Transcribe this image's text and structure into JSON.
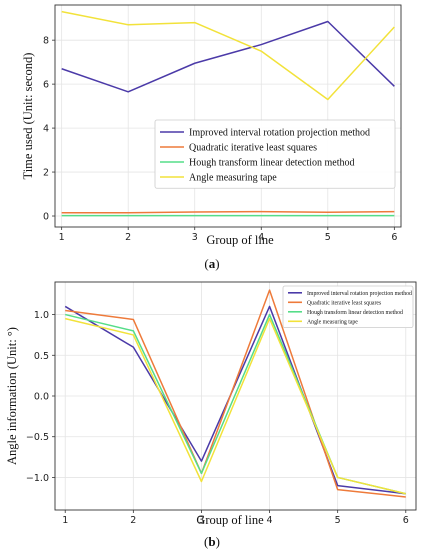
{
  "chart_data": [
    {
      "type": "line",
      "caption": "(a)",
      "x": [
        1,
        2,
        3,
        4,
        5,
        6
      ],
      "xlabel": "Group of line",
      "ylabel": "Time used (Unit: second)",
      "xlim": [
        0.9,
        6.1
      ],
      "ylim": [
        -0.5,
        9.6
      ],
      "xticks": [
        1,
        2,
        3,
        4,
        5,
        6
      ],
      "yticks": [
        0,
        2,
        4,
        6,
        8
      ],
      "grid": true,
      "legend": "center-right",
      "series": [
        {
          "name": "Improved interval rotation projection method",
          "color": "#4b3aa8",
          "values": [
            6.7,
            5.65,
            6.95,
            7.8,
            8.85,
            5.9
          ]
        },
        {
          "name": "Quadratic iterative least squares",
          "color": "#ee7a3a",
          "values": [
            0.15,
            0.15,
            0.18,
            0.2,
            0.17,
            0.2
          ]
        },
        {
          "name": "Hough transform linear detection method",
          "color": "#55dd88",
          "values": [
            0.02,
            0.02,
            0.02,
            0.02,
            0.02,
            0.02
          ]
        },
        {
          "name": "Angle measuring tape",
          "color": "#f2e23a",
          "values": [
            9.3,
            8.7,
            8.8,
            7.5,
            5.3,
            8.6
          ]
        }
      ]
    },
    {
      "type": "line",
      "caption": "(b)",
      "x": [
        1,
        2,
        3,
        4,
        5,
        6
      ],
      "xlabel": "Group of line",
      "ylabel": "Angle information (Unit: °)",
      "xlim": [
        0.85,
        6.15
      ],
      "ylim": [
        -1.4,
        1.4
      ],
      "xticks": [
        1,
        2,
        3,
        4,
        5,
        6
      ],
      "yticks": [
        1.0,
        0.5,
        0.0,
        -0.5,
        -1.0
      ],
      "ytick_labels": [
        "1.0",
        "0.5",
        "0.0",
        "−0.5",
        "−1.0"
      ],
      "grid": true,
      "legend": "top-right",
      "series": [
        {
          "name": "Improved interval rotation projection method",
          "color": "#4b3aa8",
          "values": [
            1.1,
            0.6,
            -0.8,
            1.1,
            -1.1,
            -1.2
          ]
        },
        {
          "name": "Quadratic iterative least squares",
          "color": "#ee7a3a",
          "values": [
            1.05,
            0.94,
            -0.95,
            1.3,
            -1.15,
            -1.24
          ]
        },
        {
          "name": "Hough transform linear detection method",
          "color": "#55dd88",
          "values": [
            1.0,
            0.8,
            -0.95,
            1.0,
            -1.0,
            -1.2
          ]
        },
        {
          "name": "Angle measuring tape",
          "color": "#f2e23a",
          "values": [
            0.95,
            0.75,
            -1.05,
            0.95,
            -1.0,
            -1.2
          ]
        }
      ]
    }
  ]
}
